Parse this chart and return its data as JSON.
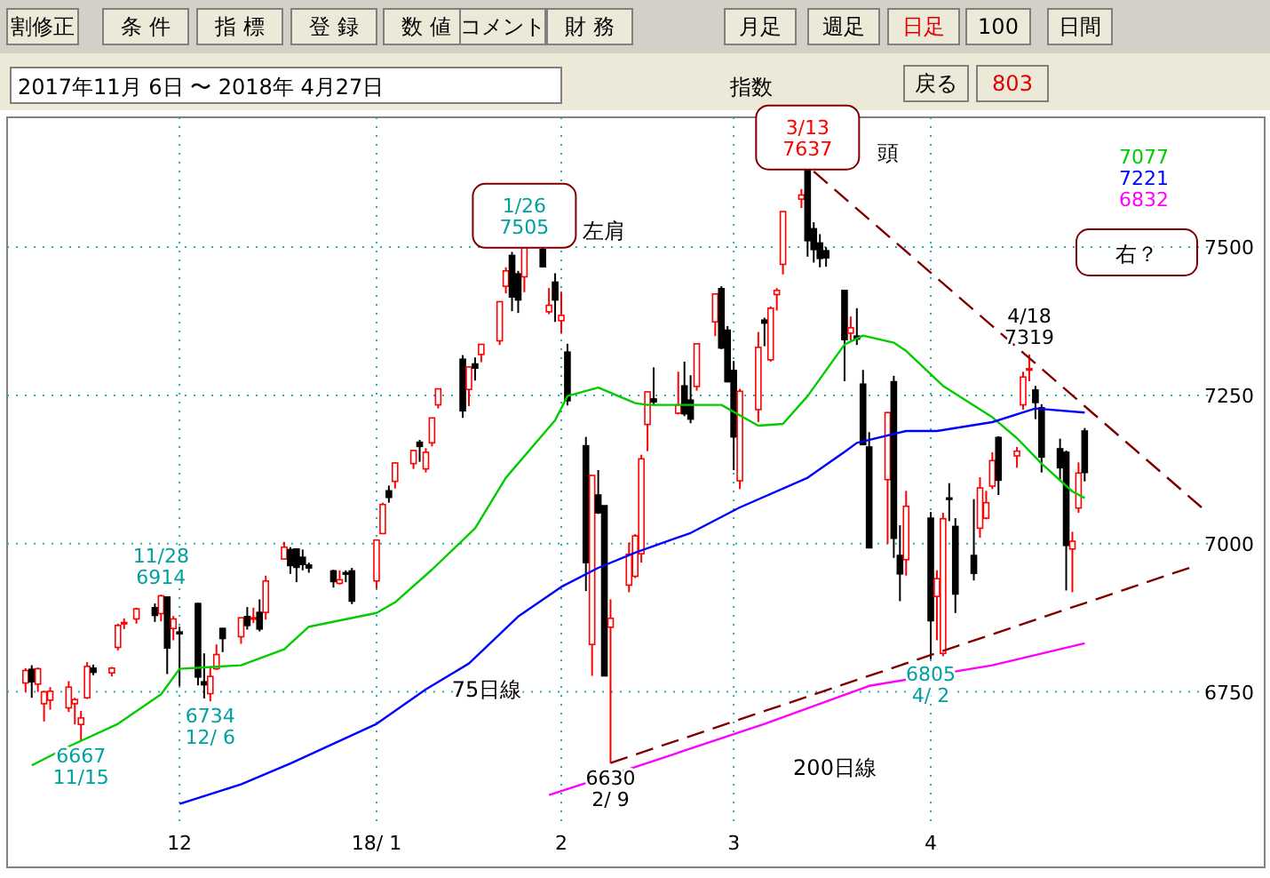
{
  "chart_data": {
    "type": "candlestick",
    "title": "指数",
    "subtitle": "2017年11月 6日 〜 2018年 4月27日",
    "x": [
      "2017-11-06",
      "2017-11-07",
      "2017-11-08",
      "2017-11-09",
      "2017-11-10",
      "2017-11-13",
      "2017-11-14",
      "2017-11-15",
      "2017-11-16",
      "2017-11-17",
      "2017-11-20",
      "2017-11-21",
      "2017-11-22",
      "2017-11-24",
      "2017-11-27",
      "2017-11-28",
      "2017-11-29",
      "2017-11-30",
      "2017-12-01",
      "2017-12-04",
      "2017-12-05",
      "2017-12-06",
      "2017-12-07",
      "2017-12-08",
      "2017-12-11",
      "2017-12-12",
      "2017-12-13",
      "2017-12-14",
      "2017-12-15",
      "2017-12-18",
      "2017-12-19",
      "2017-12-20",
      "2017-12-21",
      "2017-12-22",
      "2017-12-26",
      "2017-12-27",
      "2017-12-28",
      "2017-12-29",
      "2018-01-02",
      "2018-01-03",
      "2018-01-04",
      "2018-01-05",
      "2018-01-08",
      "2018-01-09",
      "2018-01-10",
      "2018-01-11",
      "2018-01-12",
      "2018-01-16",
      "2018-01-17",
      "2018-01-18",
      "2018-01-19",
      "2018-01-22",
      "2018-01-23",
      "2018-01-24",
      "2018-01-25",
      "2018-01-26",
      "2018-01-29",
      "2018-01-30",
      "2018-01-31",
      "2018-02-01",
      "2018-02-02",
      "2018-02-05",
      "2018-02-06",
      "2018-02-07",
      "2018-02-08",
      "2018-02-09",
      "2018-02-12",
      "2018-02-13",
      "2018-02-14",
      "2018-02-15",
      "2018-02-16",
      "2018-02-20",
      "2018-02-21",
      "2018-02-22",
      "2018-02-23",
      "2018-02-26",
      "2018-02-27",
      "2018-02-28",
      "2018-03-01",
      "2018-03-02",
      "2018-03-05",
      "2018-03-06",
      "2018-03-07",
      "2018-03-08",
      "2018-03-09",
      "2018-03-12",
      "2018-03-13",
      "2018-03-14",
      "2018-03-15",
      "2018-03-16",
      "2018-03-19",
      "2018-03-20",
      "2018-03-21",
      "2018-03-22",
      "2018-03-23",
      "2018-03-26",
      "2018-03-27",
      "2018-03-28",
      "2018-03-29",
      "2018-04-02",
      "2018-04-03",
      "2018-04-04",
      "2018-04-05",
      "2018-04-06",
      "2018-04-09",
      "2018-04-10",
      "2018-04-11",
      "2018-04-12",
      "2018-04-13",
      "2018-04-16",
      "2018-04-17",
      "2018-04-18",
      "2018-04-19",
      "2018-04-20",
      "2018-04-23",
      "2018-04-24",
      "2018-04-25",
      "2018-04-26",
      "2018-04-27"
    ],
    "ohlc": [
      [
        6765,
        6790,
        6750,
        6786
      ],
      [
        6788,
        6795,
        6740,
        6767
      ],
      [
        6763,
        6791,
        6750,
        6789
      ],
      [
        6730,
        6752,
        6700,
        6750
      ],
      [
        6736,
        6758,
        6720,
        6751
      ],
      [
        6723,
        6768,
        6716,
        6758
      ],
      [
        6730,
        6740,
        6695,
        6737
      ],
      [
        6695,
        6718,
        6667,
        6706
      ],
      [
        6740,
        6800,
        6738,
        6793
      ],
      [
        6790,
        6796,
        6778,
        6783
      ],
      [
        6782,
        6792,
        6776,
        6790
      ],
      [
        6825,
        6865,
        6820,
        6862
      ],
      [
        6866,
        6874,
        6856,
        6867
      ],
      [
        6873,
        6892,
        6865,
        6890
      ],
      [
        6892,
        6899,
        6868,
        6879
      ],
      [
        6882,
        6914,
        6869,
        6912
      ],
      [
        6910,
        6911,
        6780,
        6824
      ],
      [
        6857,
        6878,
        6837,
        6873
      ],
      [
        6851,
        6860,
        6760,
        6848
      ],
      [
        6899,
        6900,
        6761,
        6775
      ],
      [
        6767,
        6815,
        6739,
        6762
      ],
      [
        6747,
        6791,
        6734,
        6776
      ],
      [
        6789,
        6830,
        6787,
        6813
      ],
      [
        6857,
        6858,
        6817,
        6840
      ],
      [
        6843,
        6875,
        6831,
        6875
      ],
      [
        6877,
        6893,
        6855,
        6862
      ],
      [
        6873,
        6892,
        6866,
        6875
      ],
      [
        6884,
        6906,
        6852,
        6856
      ],
      [
        6884,
        6946,
        6872,
        6937
      ],
      [
        6974,
        7003,
        6974,
        6994
      ],
      [
        6990,
        6994,
        6949,
        6963
      ],
      [
        6991,
        6992,
        6935,
        6960
      ],
      [
        6977,
        6990,
        6955,
        6965
      ],
      [
        6964,
        6968,
        6951,
        6959
      ],
      [
        6954,
        6956,
        6926,
        6936
      ],
      [
        6933,
        6955,
        6931,
        6939
      ],
      [
        6951,
        6955,
        6935,
        6950
      ],
      [
        6954,
        6959,
        6898,
        6903
      ],
      [
        6937,
        7007,
        6924,
        7006
      ],
      [
        7017,
        7069,
        7016,
        7066
      ],
      [
        7089,
        7098,
        7069,
        7078
      ],
      [
        7105,
        7137,
        7093,
        7136
      ],
      [
        7135,
        7158,
        7126,
        7157
      ],
      [
        7171,
        7175,
        7138,
        7164
      ],
      [
        7126,
        7161,
        7120,
        7154
      ],
      [
        7170,
        7212,
        7164,
        7212
      ],
      [
        7234,
        7262,
        7228,
        7261
      ],
      [
        7311,
        7318,
        7212,
        7224
      ],
      [
        7260,
        7299,
        7232,
        7298
      ],
      [
        7303,
        7314,
        7275,
        7296
      ],
      [
        7319,
        7337,
        7306,
        7336
      ],
      [
        7342,
        7409,
        7335,
        7408
      ],
      [
        7434,
        7466,
        7422,
        7460
      ],
      [
        7486,
        7492,
        7392,
        7416
      ],
      [
        7455,
        7460,
        7389,
        7411
      ],
      [
        7450,
        7505,
        7424,
        7505
      ],
      [
        7496,
        7500,
        7466,
        7467
      ],
      [
        7391,
        7431,
        7387,
        7402
      ],
      [
        7441,
        7456,
        7374,
        7411
      ],
      [
        7376,
        7425,
        7354,
        7385
      ],
      [
        7323,
        7337,
        7233,
        7241
      ],
      [
        7165,
        7180,
        6920,
        6968
      ],
      [
        6830,
        7116,
        6777,
        7115
      ],
      [
        7082,
        7124,
        7050,
        7052
      ],
      [
        7064,
        7064,
        6777,
        6777
      ],
      [
        6859,
        6906,
        6630,
        6874
      ],
      [
        6930,
        7002,
        6918,
        6982
      ],
      [
        6945,
        7016,
        6942,
        7013
      ],
      [
        6983,
        7150,
        6968,
        7143
      ],
      [
        7201,
        7256,
        7156,
        7256
      ],
      [
        7244,
        7297,
        7233,
        7239
      ],
      [
        7220,
        7290,
        7218,
        7234
      ],
      [
        7266,
        7307,
        7215,
        7219
      ],
      [
        7242,
        7284,
        7203,
        7210
      ],
      [
        7265,
        7337,
        7258,
        7337
      ],
      [
        7374,
        7422,
        7350,
        7421
      ],
      [
        7430,
        7434,
        7328,
        7330
      ],
      [
        7360,
        7367,
        7273,
        7273
      ],
      [
        7292,
        7308,
        7124,
        7180
      ],
      [
        7106,
        7261,
        7092,
        7257
      ],
      [
        7226,
        7357,
        7205,
        7331
      ],
      [
        7377,
        7381,
        7333,
        7372
      ],
      [
        7310,
        7400,
        7307,
        7397
      ],
      [
        7420,
        7431,
        7393,
        7427
      ],
      [
        7471,
        7560,
        7454,
        7560
      ],
      [
        7581,
        7598,
        7566,
        7588
      ],
      [
        7635,
        7637,
        7484,
        7511
      ],
      [
        7531,
        7542,
        7474,
        7496
      ],
      [
        7507,
        7522,
        7466,
        7481
      ],
      [
        7494,
        7500,
        7467,
        7482
      ],
      [
        7427,
        7428,
        7274,
        7344
      ],
      [
        7355,
        7383,
        7342,
        7364
      ],
      [
        7350,
        7397,
        7335,
        7345
      ],
      [
        7269,
        7293,
        7166,
        7167
      ],
      [
        7163,
        7188,
        6992,
        6993
      ],
      [
        7108,
        7222,
        7000,
        7221
      ],
      [
        7273,
        7283,
        6976,
        7009
      ],
      [
        6980,
        7031,
        6903,
        6949
      ],
      [
        6973,
        7089,
        6946,
        7063
      ],
      [
        7043,
        7053,
        6805,
        6870
      ],
      [
        6911,
        6955,
        6837,
        6941
      ],
      [
        6815,
        7052,
        6810,
        7042
      ],
      [
        7077,
        7102,
        7038,
        7076
      ],
      [
        7029,
        7043,
        6883,
        6915
      ],
      [
        6980,
        7075,
        6938,
        6950
      ],
      [
        7026,
        7112,
        7010,
        7094
      ],
      [
        7043,
        7089,
        7041,
        7069
      ],
      [
        7097,
        7154,
        7092,
        7140
      ],
      [
        7179,
        7181,
        7082,
        7107
      ],
      [
        7148,
        7163,
        7128,
        7156
      ],
      [
        7234,
        7290,
        7226,
        7281
      ],
      [
        7294,
        7319,
        7274,
        7295
      ],
      [
        7259,
        7266,
        7210,
        7238
      ],
      [
        7229,
        7235,
        7120,
        7146
      ],
      [
        7160,
        7177,
        7106,
        7128
      ],
      [
        7154,
        7157,
        6921,
        6997
      ],
      [
        6991,
        7020,
        6918,
        7004
      ],
      [
        7060,
        7137,
        7052,
        7119
      ],
      [
        7190,
        7195,
        7105,
        7120
      ]
    ],
    "colors": [
      "#ff0000",
      "#000000",
      "#ff0000",
      "#ff0000",
      "#ff0000",
      "#ff0000",
      "#ff0000",
      "#ff0000",
      "#ff0000",
      "#000000",
      "#ff0000",
      "#ff0000",
      "#ff0000",
      "#ff0000",
      "#000000",
      "#ff0000",
      "#000000",
      "#ff0000",
      "#000000",
      "#000000",
      "#000000",
      "#ff0000",
      "#ff0000",
      "#000000",
      "#ff0000",
      "#000000",
      "#ff0000",
      "#000000",
      "#ff0000",
      "#ff0000",
      "#000000",
      "#000000",
      "#000000",
      "#000000",
      "#000000",
      "#ff0000",
      "#000000",
      "#000000",
      "#ff0000",
      "#ff0000",
      "#000000",
      "#ff0000",
      "#ff0000",
      "#000000",
      "#ff0000",
      "#ff0000",
      "#ff0000",
      "#000000",
      "#ff0000",
      "#000000",
      "#ff0000",
      "#ff0000",
      "#ff0000",
      "#000000",
      "#000000",
      "#ff0000",
      "#000000",
      "#ff0000",
      "#000000",
      "#ff0000",
      "#000000",
      "#000000",
      "#ff0000",
      "#000000",
      "#000000",
      "#ff0000",
      "#ff0000",
      "#ff0000",
      "#ff0000",
      "#ff0000",
      "#000000",
      "#ff0000",
      "#000000",
      "#000000",
      "#ff0000",
      "#ff0000",
      "#000000",
      "#000000",
      "#000000",
      "#ff0000",
      "#ff0000",
      "#000000",
      "#ff0000",
      "#ff0000",
      "#ff0000",
      "#ff0000",
      "#000000",
      "#000000",
      "#000000",
      "#000000",
      "#000000",
      "#ff0000",
      "#000000",
      "#000000",
      "#000000",
      "#ff0000",
      "#000000",
      "#000000",
      "#ff0000",
      "#000000",
      "#ff0000",
      "#ff0000",
      "#000000",
      "#000000",
      "#000000",
      "#ff0000",
      "#ff0000",
      "#ff0000",
      "#000000",
      "#ff0000",
      "#ff0000",
      "#ff0000",
      "#000000",
      "#000000",
      "#000000",
      "#000000",
      "#ff0000",
      "#ff0000",
      "#000000"
    ],
    "series": [
      {
        "type": "line",
        "color": "#00cc00",
        "x": [
          "2017-11-07",
          "2017-11-13",
          "2017-11-21",
          "2017-11-28",
          "2017-12-01",
          "2017-12-11",
          "2017-12-18",
          "2017-12-22",
          "2018-01-02",
          "2018-01-05",
          "2018-01-11",
          "2018-01-18",
          "2018-01-23",
          "2018-01-31",
          "2018-02-02",
          "2018-02-07",
          "2018-02-13",
          "2018-02-15",
          "2018-02-22",
          "2018-02-27",
          "2018-03-05",
          "2018-03-09",
          "2018-03-13",
          "2018-03-19",
          "2018-03-22",
          "2018-03-27",
          "2018-03-29",
          "2018-04-04",
          "2018-04-12",
          "2018-04-16",
          "2018-04-20",
          "2018-04-25",
          "2018-04-27"
        ],
        "values": [
          6626,
          6658,
          6696,
          6746,
          6789,
          6795,
          6822,
          6860,
          6883,
          6901,
          6956,
          7026,
          7111,
          7208,
          7249,
          7263,
          7237,
          7234,
          7234,
          7234,
          7199,
          7202,
          7249,
          7336,
          7351,
          7339,
          7325,
          7266,
          7213,
          7178,
          7135,
          7088,
          7077
        ]
      },
      {
        "type": "line",
        "color": "#0000ff",
        "x": [
          "2017-12-01",
          "2017-12-11",
          "2017-12-19",
          "2018-01-02",
          "2018-01-10",
          "2018-01-17",
          "2018-01-25",
          "2018-02-01",
          "2018-02-07",
          "2018-02-13",
          "2018-02-22",
          "2018-03-02",
          "2018-03-13",
          "2018-03-19",
          "2018-03-21",
          "2018-03-29",
          "2018-04-03",
          "2018-04-12",
          "2018-04-19",
          "2018-04-27"
        ],
        "values": [
          6561,
          6594,
          6629,
          6696,
          6754,
          6798,
          6877,
          6927,
          6959,
          6985,
          7018,
          7061,
          7111,
          7155,
          7170,
          7190,
          7190,
          7205,
          7228,
          7221
        ]
      },
      {
        "type": "line",
        "color": "#ff00ff",
        "x": [
          "2018-01-30",
          "2018-02-13",
          "2018-03-06",
          "2018-03-23",
          "2018-04-12",
          "2018-04-27"
        ],
        "values": [
          6576,
          6623,
          6696,
          6760,
          6795,
          6832
        ]
      },
      {
        "type": "line",
        "color": "#800000",
        "line_style": "dashed",
        "x": [
          "2018-03-14",
          "2018-05-16"
        ],
        "values": [
          7628,
          7061
        ]
      },
      {
        "type": "line",
        "color": "#800000",
        "line_style": "dashed",
        "x": [
          "2018-02-09",
          "2018-05-14"
        ],
        "values": [
          6630,
          6959
        ]
      }
    ],
    "xlim": [
      "2017-11-03",
      "2018-05-17"
    ],
    "xticks": [
      {
        "value": "2017-12-01",
        "label": "12"
      },
      {
        "value": "2018-01-02",
        "label": "18/ 1"
      },
      {
        "value": "2018-02-01",
        "label": "2"
      },
      {
        "value": "2018-03-01",
        "label": "3"
      },
      {
        "value": "2018-04-02",
        "label": "4"
      }
    ],
    "ylim": [
      6532,
      7719
    ],
    "yticks": [
      6750,
      7000,
      7250,
      7500
    ],
    "grid": true,
    "annotations": [
      "割修正",
      "条 件",
      "指 標",
      "登 録",
      "数 値",
      "コメント",
      "財 務",
      "月足",
      "週足",
      "日足",
      "100",
      "日間",
      "戻る",
      "803",
      "左肩",
      "頭",
      "右？",
      "75日線",
      "200日線",
      "7077",
      "7221",
      "6832",
      {
        "text": "11/28\n6914",
        "x": "2017-11-28",
        "y": 6914
      },
      {
        "text": "6667\n11/15",
        "x": "2017-11-15",
        "y": 6667
      },
      {
        "text": "6734\n12/ 6",
        "x": "2017-12-06",
        "y": 6734
      },
      {
        "text": "1/26\n7505",
        "x": "2018-01-26",
        "y": 7505
      },
      {
        "text": "6630\n2/ 9",
        "x": "2018-02-09",
        "y": 6630
      },
      {
        "text": "3/13\n7637",
        "x": "2018-03-13",
        "y": 7637
      },
      {
        "text": "6805\n4/ 2",
        "x": "2018-04-02",
        "y": 6805
      },
      {
        "text": "4/18\n7319",
        "x": "2018-04-18",
        "y": 7319
      }
    ]
  }
}
